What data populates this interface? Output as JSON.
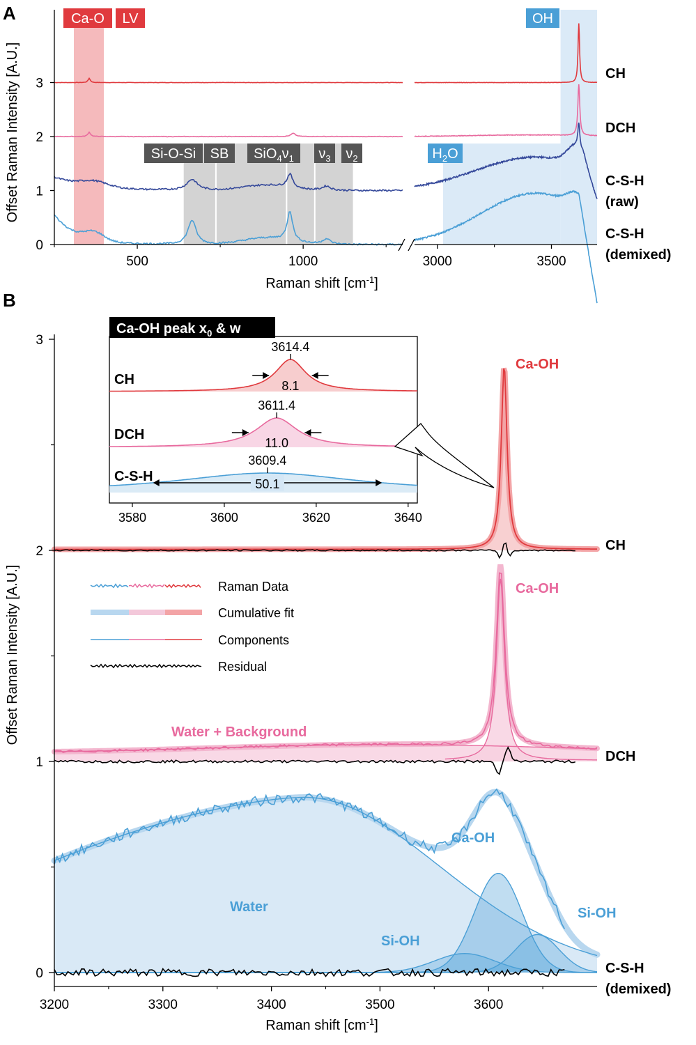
{
  "figure": {
    "panel_a": "A",
    "panel_b": "B"
  },
  "colors": {
    "ch": "#e03a3e",
    "dch": "#e86a9e",
    "csh_raw": "#34489a",
    "csh_demixed": "#4a9fd6",
    "ch_fill": "#f6c4c6",
    "dch_fill": "#f7cfe0",
    "csh_fill": "#d5e7f5",
    "band_lv": "#f3aeb0",
    "band_oh": "#dbeaf7",
    "band_gray": "#d3d3d3",
    "residual": "#000000"
  },
  "chart_data": [
    {
      "id": "panel-A",
      "type": "line",
      "ylabel": "Offset Raman Intensity [A.U.]",
      "xlabel": "Raman shift [cm-1]",
      "xlabel_parts": [
        "Raman shift [cm",
        "-1",
        "]"
      ],
      "yticks": [
        "0",
        "1",
        "2",
        "3"
      ],
      "xticks_left": [
        "500",
        "1000"
      ],
      "xticks_right": [
        "3000",
        "3500"
      ],
      "x_segments": [
        [
          250,
          1300
        ],
        [
          2900,
          3700
        ]
      ],
      "ylim": [
        0,
        4.4
      ],
      "band_tags": {
        "ca_o": "Ca-O",
        "lv": "LV",
        "oh": "OH",
        "si_o_si": "Si-O-Si",
        "sb": "SB",
        "sio4_parts": [
          "SiO",
          "4",
          "ν",
          "1"
        ],
        "nu3_parts": [
          "ν",
          "3"
        ],
        "nu2_parts": [
          "ν",
          "2"
        ],
        "h2o_parts": [
          "H",
          "2",
          "O"
        ]
      },
      "series": [
        {
          "name": "CH",
          "offset": 3.0,
          "features": [
            [
              355,
              0.08,
              4
            ],
            [
              3620,
              1.1,
              4
            ]
          ]
        },
        {
          "name": "DCH",
          "offset": 2.0,
          "features": [
            [
              355,
              0.08,
              5
            ],
            [
              970,
              0.06,
              8
            ],
            [
              3620,
              0.95,
              5
            ]
          ]
        },
        {
          "name": "C-S-H",
          "name2": "(raw)",
          "offset": 1.0
        },
        {
          "name": "C-S-H",
          "name2": "(demixed)",
          "offset": 0.0
        }
      ]
    },
    {
      "id": "panel-B",
      "type": "line",
      "ylabel": "Offset Raman Intensity [A.U.]",
      "xlabel": "Raman shift [cm-1]",
      "xlabel_parts": [
        "Raman shift [cm",
        "-1",
        "]"
      ],
      "xlim": [
        3200,
        3700
      ],
      "ylim": [
        -0.05,
        3.0
      ],
      "xticks": [
        "3200",
        "3300",
        "3400",
        "3500",
        "3600"
      ],
      "yticks": [
        "0",
        "1",
        "2",
        "3"
      ],
      "samples": [
        {
          "name": "CH",
          "offset": 2.0,
          "peak_label": "Ca-OH"
        },
        {
          "name": "DCH",
          "offset": 1.0,
          "peak_label": "Ca-OH",
          "band_label": "Water + Background"
        },
        {
          "name": "C-S-H",
          "name2": "(demixed)",
          "offset": 0.0,
          "labels": [
            "Ca-OH",
            "Water",
            "Si-OH",
            "Si-OH"
          ]
        }
      ],
      "legend": [
        "Raman Data",
        "Cumulative fit",
        "Components",
        "Residual"
      ]
    },
    {
      "id": "panel-B-inset",
      "type": "line",
      "title_parts": [
        "Ca-OH peak x",
        "0",
        " & w"
      ],
      "xlim": [
        3575,
        3642
      ],
      "xticks": [
        "3580",
        "3600",
        "3620",
        "3640"
      ],
      "series": [
        {
          "name": "CH",
          "x0": 3614.4,
          "w": 8.1,
          "x0_label": "3614.4",
          "w_label": "8.1"
        },
        {
          "name": "DCH",
          "x0": 3611.4,
          "w": 11.0,
          "x0_label": "3611.4",
          "w_label": "11.0"
        },
        {
          "name": "C-S-H",
          "x0": 3609.4,
          "w": 50.1,
          "x0_label": "3609.4",
          "w_label": "50.1"
        }
      ]
    }
  ]
}
